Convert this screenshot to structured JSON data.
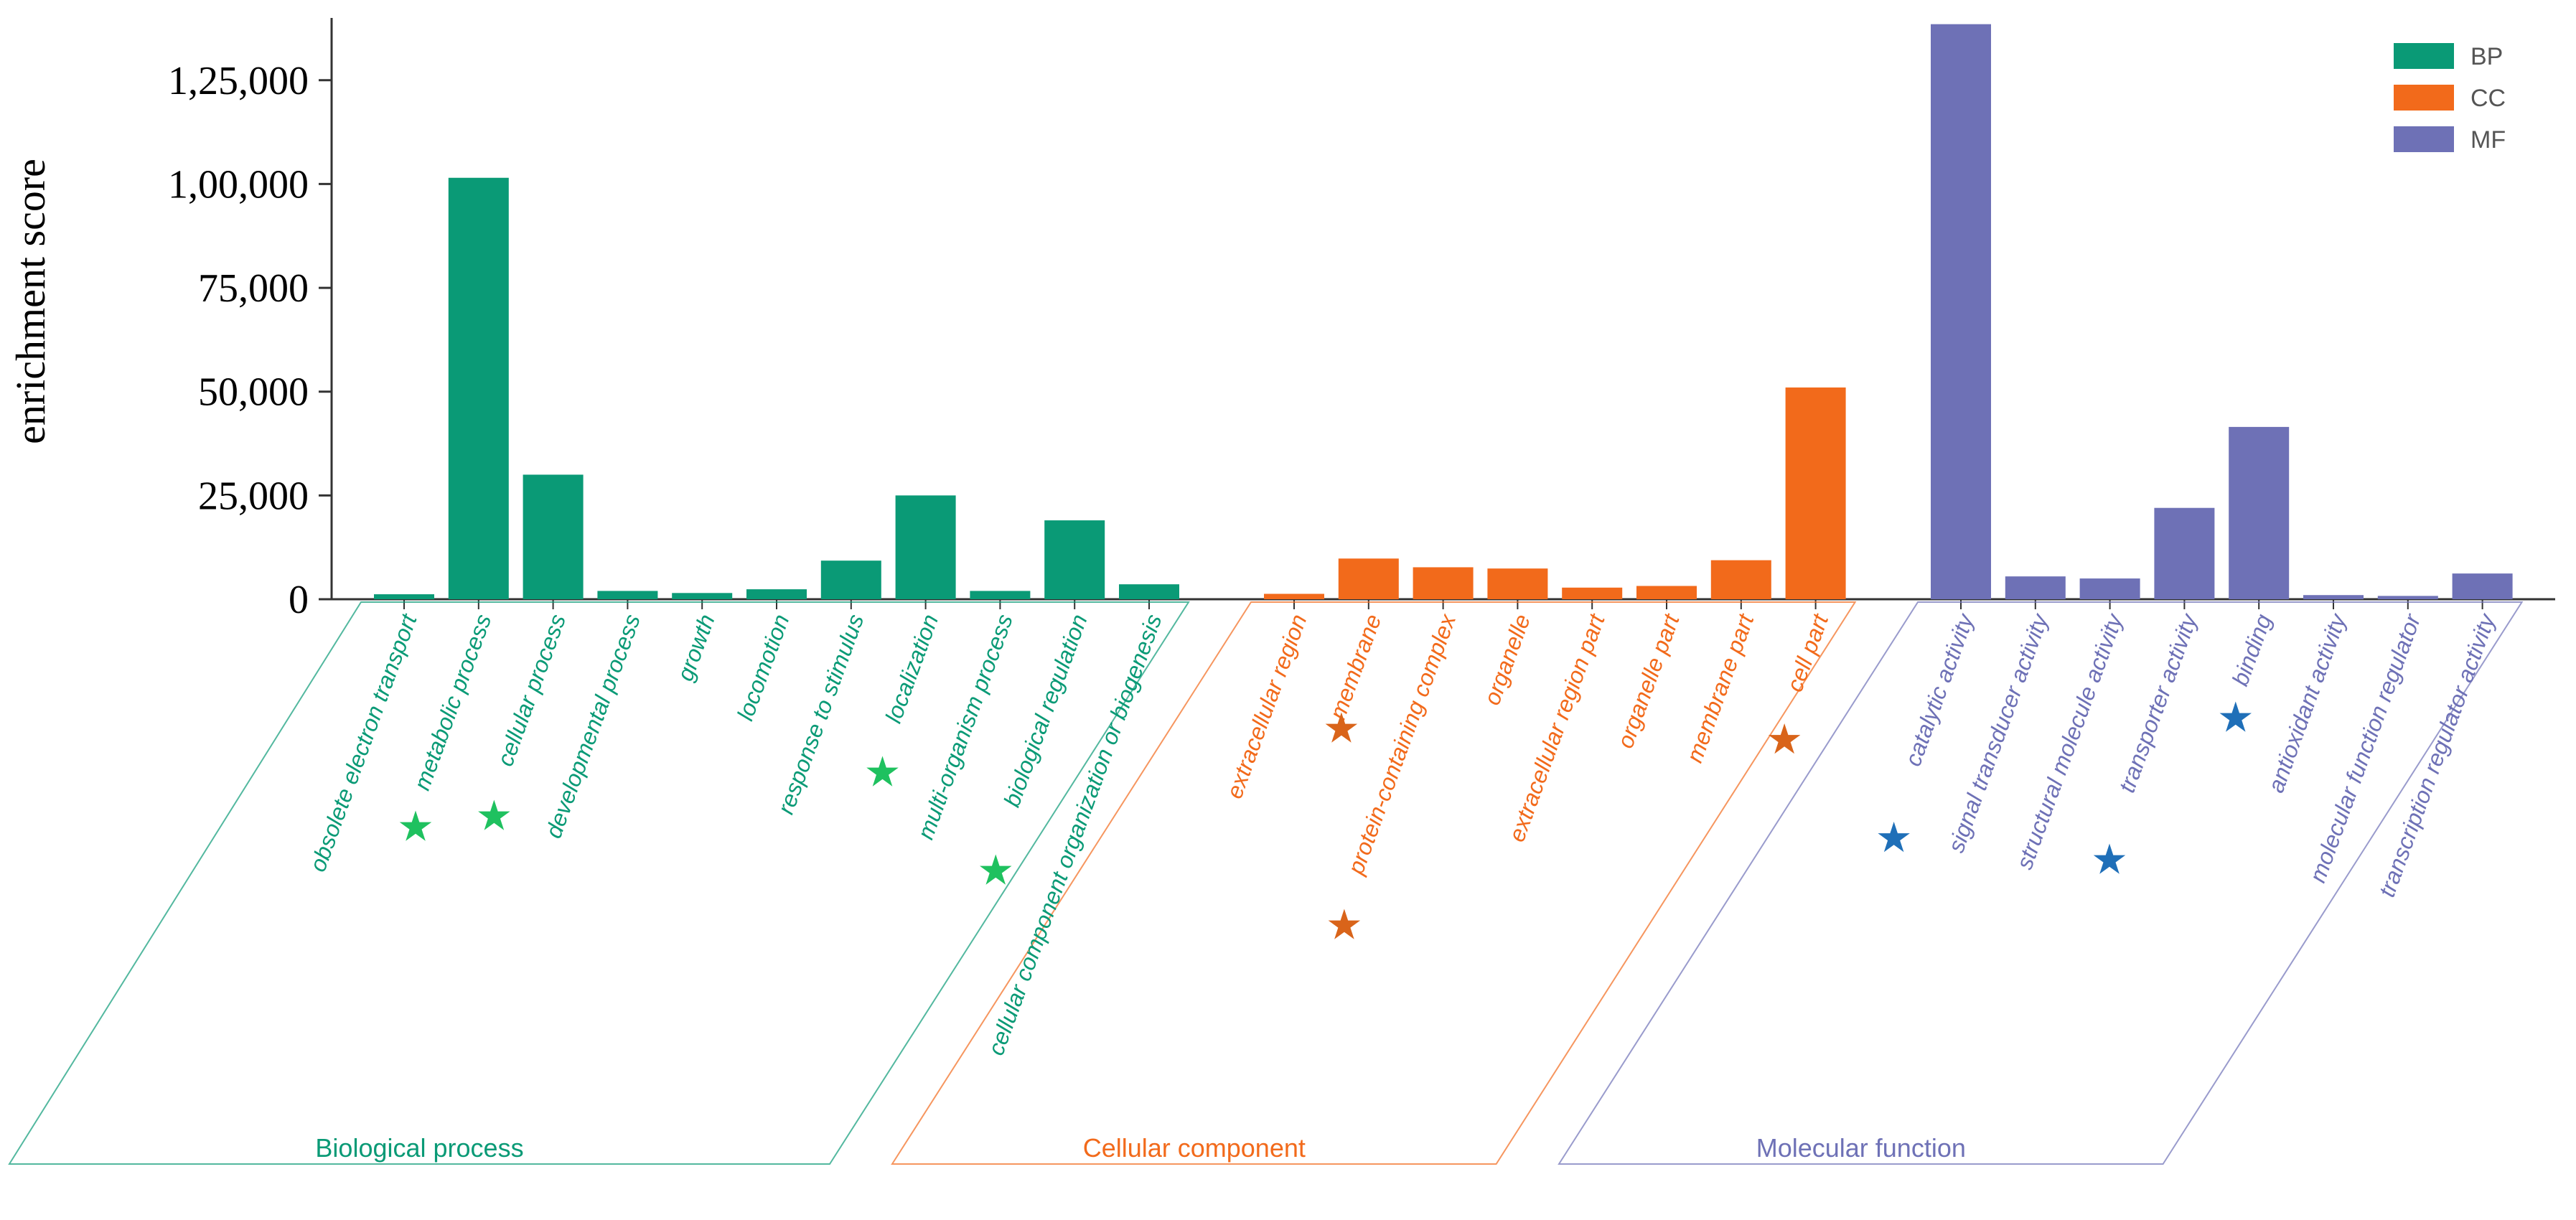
{
  "chart_data": {
    "type": "bar",
    "ylabel": "enrichment score",
    "ylim": [
      0,
      140000
    ],
    "yticks": [
      0,
      25000,
      50000,
      75000,
      100000,
      125000
    ],
    "ytick_labels": [
      "0",
      "25,000",
      "50,000",
      "75,000",
      "1,00,000",
      "1,25,000"
    ],
    "colors": {
      "BP": "#0a9a76",
      "CC": "#f26a1b",
      "MF": "#6e71b6"
    },
    "star_colors": {
      "BP": "#1fc15f",
      "CC": "#d9641a",
      "MF": "#1f6fb8"
    },
    "legend": [
      {
        "key": "BP",
        "label": "BP"
      },
      {
        "key": "CC",
        "label": "CC"
      },
      {
        "key": "MF",
        "label": "MF"
      }
    ],
    "groups": [
      {
        "key": "BP",
        "name": "Biological process",
        "categories": [
          {
            "label": "obsolete electron transport",
            "value": 1200,
            "starred": false
          },
          {
            "label": "metabolic process",
            "value": 101500,
            "starred": true
          },
          {
            "label": "cellular process",
            "value": 30000,
            "starred": true
          },
          {
            "label": "developmental process",
            "value": 2000,
            "starred": false
          },
          {
            "label": "growth",
            "value": 1500,
            "starred": false
          },
          {
            "label": "locomotion",
            "value": 2400,
            "starred": false
          },
          {
            "label": "response to stimulus",
            "value": 9300,
            "starred": false
          },
          {
            "label": "localization",
            "value": 25000,
            "starred": true
          },
          {
            "label": "multi-organism process",
            "value": 2000,
            "starred": false
          },
          {
            "label": "biological regulation",
            "value": 19000,
            "starred": true
          },
          {
            "label": "cellular component organization or biogenesis",
            "value": 3600,
            "starred": false
          }
        ]
      },
      {
        "key": "CC",
        "name": "Cellular component",
        "categories": [
          {
            "label": "extracellular region",
            "value": 1300,
            "starred": false
          },
          {
            "label": "membrane",
            "value": 9800,
            "starred": true
          },
          {
            "label": "protein-containing complex",
            "value": 7700,
            "starred": true
          },
          {
            "label": "organelle",
            "value": 7400,
            "starred": false
          },
          {
            "label": "extracellular region part",
            "value": 2800,
            "starred": false
          },
          {
            "label": "organelle part",
            "value": 3200,
            "starred": false
          },
          {
            "label": "membrane part",
            "value": 9400,
            "starred": false
          },
          {
            "label": "cell part",
            "value": 51000,
            "starred": true
          }
        ]
      },
      {
        "key": "MF",
        "name": "Molecular function",
        "categories": [
          {
            "label": "catalytic activity",
            "value": 138500,
            "starred": true
          },
          {
            "label": "signal transducer activity",
            "value": 5500,
            "starred": false
          },
          {
            "label": "structural molecule activity",
            "value": 5000,
            "starred": false
          },
          {
            "label": "transporter activity",
            "value": 22000,
            "starred": true
          },
          {
            "label": "binding",
            "value": 41500,
            "starred": true
          },
          {
            "label": "antioxidant activity",
            "value": 1000,
            "starred": false
          },
          {
            "label": "molecular function regulator",
            "value": 800,
            "starred": false
          },
          {
            "label": "transcription regulator activity",
            "value": 6200,
            "starred": false
          }
        ]
      }
    ]
  }
}
